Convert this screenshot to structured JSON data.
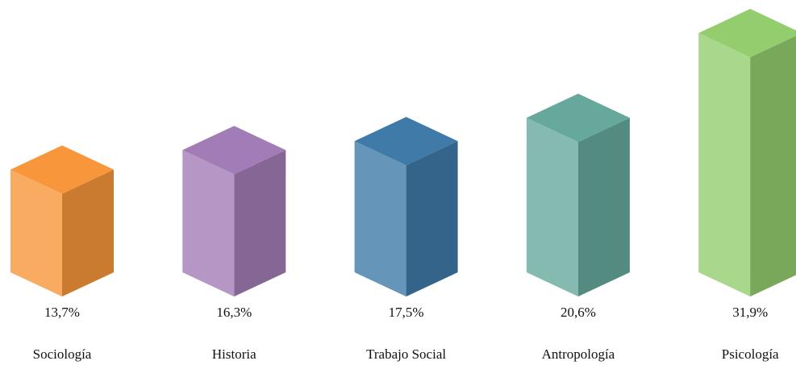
{
  "chart_data": {
    "type": "bar3d",
    "categories": [
      "Sociología",
      "Historia",
      "Trabajo Social",
      "Antropología",
      "Psicología"
    ],
    "values": [
      13.7,
      16.3,
      17.5,
      20.6,
      31.9
    ],
    "value_labels": [
      "13,7%",
      "16,3%",
      "17,5%",
      "20,6%",
      "31,9%"
    ],
    "colors": [
      "#f7963a",
      "#a27cb6",
      "#3f7aa8",
      "#66a99c",
      "#94cd6e"
    ]
  }
}
